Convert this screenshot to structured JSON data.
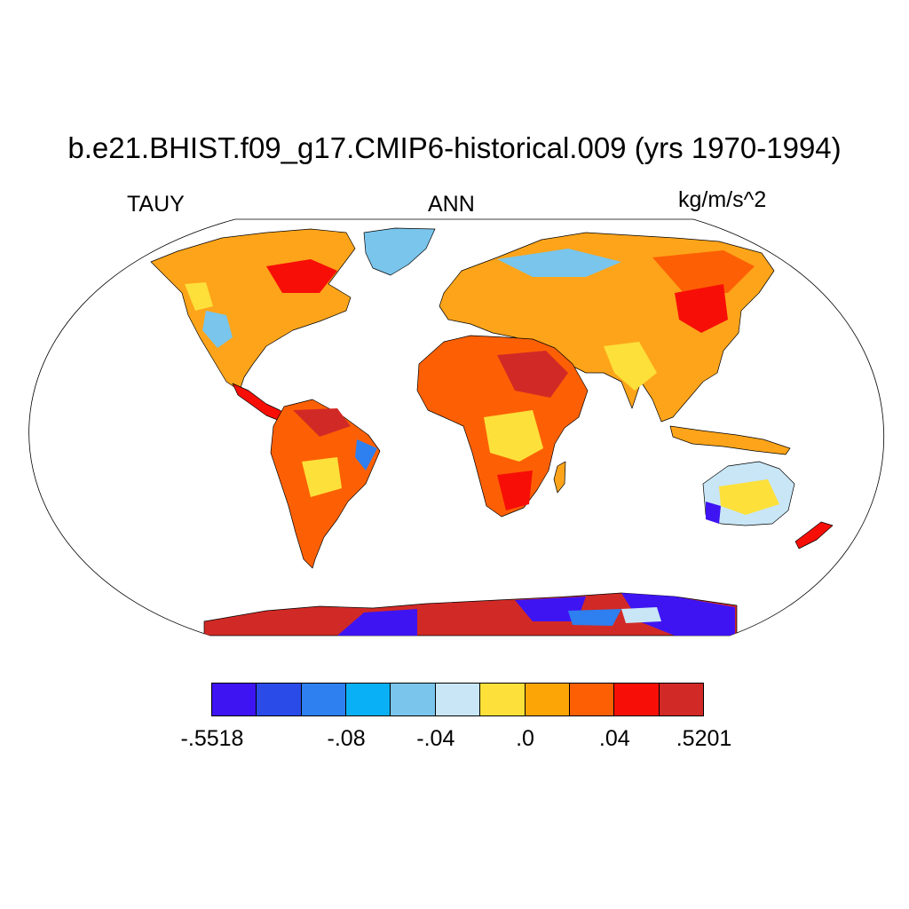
{
  "plot": {
    "title": "b.e21.BHIST.f09_g17.CMIP6-historical.009 (yrs 1970-1994)",
    "variable": "TAUY",
    "season": "ANN",
    "units": "kg/m/s^2",
    "projection": "robinson"
  },
  "colorbar": {
    "colors": [
      "#3f14f2",
      "#2b4be8",
      "#2e7fef",
      "#0ab0f5",
      "#79c5ec",
      "#c8e6f6",
      "#fde03a",
      "#fca506",
      "#fd6004",
      "#f70f07",
      "#d12a26"
    ],
    "labels": [
      {
        "text": "-.5518",
        "boundary": 0
      },
      {
        "text": "-.08",
        "boundary": 3
      },
      {
        "text": "-.04",
        "boundary": 5
      },
      {
        "text": ".0",
        "boundary": 7
      },
      {
        "text": ".04",
        "boundary": 9
      },
      {
        "text": ".5201",
        "boundary": 11
      }
    ]
  }
}
